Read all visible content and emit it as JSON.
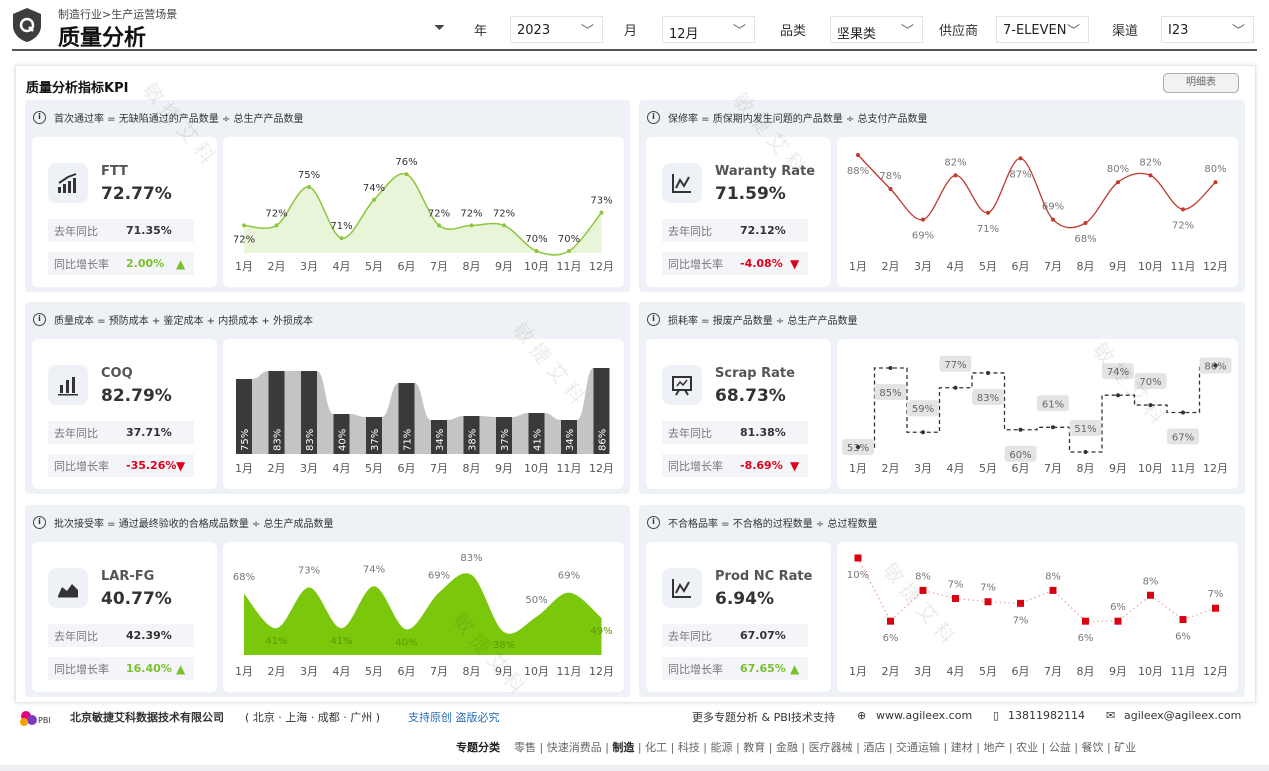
{
  "header": {
    "breadcrumb": "制造行业>生产运营场景",
    "title": "质量分析",
    "logo_letter": "Q",
    "filters": [
      {
        "label": "年",
        "value": "2023"
      },
      {
        "label": "月",
        "value": "12月"
      },
      {
        "label": "品类",
        "value": "坚果类"
      },
      {
        "label": "供应商",
        "value": "7-ELEVEN"
      },
      {
        "label": "渠道",
        "value": "I23"
      }
    ]
  },
  "main": {
    "title": "质量分析指标KPI",
    "detail_button": "明细表",
    "watermark": "敏捷艾科"
  },
  "panels": [
    {
      "formula": "首次通过率 = 无缺陷通过的产品数量 ÷ 总生产产品数量",
      "icon": "chart-up-icon",
      "name": "FTT",
      "value": "72.77%",
      "ly_label": "去年同比",
      "ly_value": "71.35%",
      "yoy_label": "同比增长率",
      "yoy_value": "2.00%",
      "trend": "up"
    },
    {
      "formula": "保修率 = 质保期内发生问题的产品数量 ÷ 总支付产品数量",
      "icon": "line-chart-icon",
      "name": "Waranty Rate",
      "value": "71.59%",
      "ly_label": "去年同比",
      "ly_value": "72.12%",
      "yoy_label": "同比增长率",
      "yoy_value": "-4.08%",
      "trend": "down"
    },
    {
      "formula": "质量成本 = 预防成本 + 鉴定成本 + 内损成本 + 外损成本",
      "icon": "bar-chart-icon",
      "name": "COQ",
      "value": "82.79%",
      "ly_label": "去年同比",
      "ly_value": "37.71%",
      "yoy_label": "同比增长率",
      "yoy_value": "-35.26%",
      "trend": "down"
    },
    {
      "formula": "损耗率 = 报废产品数量 ÷ 总生产产品数量",
      "icon": "presentation-icon",
      "name": "Scrap Rate",
      "value": "68.73%",
      "ly_label": "去年同比",
      "ly_value": "81.38%",
      "yoy_label": "同比增长率",
      "yoy_value": "-8.69%",
      "trend": "down"
    },
    {
      "formula": "批次接受率 = 通过最终验收的合格成品数量 ÷ 总生产成品数量",
      "icon": "area-chart-icon",
      "name": "LAR-FG",
      "value": "40.77%",
      "ly_label": "去年同比",
      "ly_value": "42.39%",
      "yoy_label": "同比增长率",
      "yoy_value": "16.40%",
      "trend": "up"
    },
    {
      "formula": "不合格品率 = 不合格的过程数量 ÷ 总过程数量",
      "icon": "line-chart-icon",
      "name": "Prod NC Rate",
      "value": "6.94%",
      "ly_label": "去年同比",
      "ly_value": "67.07%",
      "yoy_label": "同比增长率",
      "yoy_value": "67.65%",
      "trend": "up"
    }
  ],
  "colors": {
    "up": "#7cbf2e",
    "down": "#e0001b",
    "ftt_line": "#8dc63f",
    "ftt_fill": "#e8f5d8",
    "warranty_line": "#c0392b",
    "coq_bar": "#3a3a3a",
    "coq_area": "#c4c4c4",
    "lar_fill": "#7ac70c",
    "nc_marker": "#d9000f"
  },
  "chart_data": [
    {
      "type": "area",
      "categories": [
        "1月",
        "2月",
        "3月",
        "4月",
        "5月",
        "6月",
        "7月",
        "8月",
        "9月",
        "10月",
        "11月",
        "12月"
      ],
      "values": [
        72,
        72,
        75,
        71,
        74,
        76,
        72,
        72,
        72,
        70,
        70,
        73
      ],
      "labels": [
        "72%",
        "72%",
        "75%",
        "71%",
        "74%",
        "76%",
        "72%",
        "72%",
        "72%",
        "70%",
        "70%",
        "73%"
      ]
    },
    {
      "type": "line",
      "categories": [
        "1月",
        "2月",
        "3月",
        "4月",
        "5月",
        "6月",
        "7月",
        "8月",
        "9月",
        "10月",
        "11月",
        "12月"
      ],
      "values": [
        88,
        78,
        69,
        82,
        71,
        87,
        69,
        68,
        80,
        82,
        72,
        80
      ],
      "labels": [
        "88%",
        "78%",
        "69%",
        "82%",
        "71%",
        "87%",
        "69%",
        "68%",
        "80%",
        "82%",
        "72%",
        "80%"
      ]
    },
    {
      "type": "bar",
      "categories": [
        "1月",
        "2月",
        "3月",
        "4月",
        "5月",
        "6月",
        "7月",
        "8月",
        "9月",
        "10月",
        "11月",
        "12月"
      ],
      "values": [
        75,
        83,
        83,
        40,
        37,
        71,
        34,
        38,
        37,
        41,
        34,
        86
      ],
      "labels": [
        "75%",
        "83%",
        "83%",
        "40%",
        "37%",
        "71%",
        "34%",
        "38%",
        "37%",
        "41%",
        "34%",
        "86%"
      ]
    },
    {
      "type": "line",
      "style": "step-dashed",
      "categories": [
        "1月",
        "2月",
        "3月",
        "4月",
        "5月",
        "6月",
        "7月",
        "8月",
        "9月",
        "10月",
        "11月",
        "12月"
      ],
      "values": [
        53,
        85,
        59,
        77,
        83,
        60,
        61,
        51,
        74,
        70,
        67,
        86
      ],
      "labels": [
        "53%",
        "85%",
        "59%",
        "77%",
        "83%",
        "60%",
        "61%",
        "51%",
        "74%",
        "70%",
        "67%",
        "86%"
      ]
    },
    {
      "type": "area",
      "categories": [
        "1月",
        "2月",
        "3月",
        "4月",
        "5月",
        "6月",
        "7月",
        "8月",
        "9月",
        "10月",
        "11月",
        "12月"
      ],
      "values": [
        68,
        41,
        73,
        41,
        74,
        40,
        69,
        83,
        38,
        50,
        69,
        49
      ],
      "labels": [
        "68%",
        "41%",
        "73%",
        "41%",
        "74%",
        "40%",
        "69%",
        "83%",
        "38%",
        "50%",
        "69%",
        "49%"
      ]
    },
    {
      "type": "scatter",
      "style": "dotted-line",
      "categories": [
        "1月",
        "2月",
        "3月",
        "4月",
        "5月",
        "6月",
        "7月",
        "8月",
        "9月",
        "10月",
        "11月",
        "12月"
      ],
      "values": [
        10.0,
        6.1,
        8.0,
        7.5,
        7.3,
        7.2,
        8.0,
        6.1,
        6.1,
        7.7,
        6.2,
        6.9
      ],
      "labels": [
        "10%",
        "6%",
        "8%",
        "7%",
        "7%",
        "7%",
        "8%",
        "6%",
        "6%",
        "8%",
        "6%",
        "7%"
      ]
    }
  ],
  "footer": {
    "company": "北京敏捷艾科数据技术有限公司",
    "cities": "( 北京 · 上海 · 成都 · 广州 )",
    "copyright": "支持原创 盗版必究",
    "support": "更多专题分析 & PBI技术支持",
    "website": "www.agileex.com",
    "phone": "13811982114",
    "email": "agileex@agileex.com",
    "logo_text": "Power BI艾科",
    "topics_label": "专题分类",
    "topics": [
      "零售",
      "快速消费品",
      "制造",
      "化工",
      "科技",
      "能源",
      "教育",
      "金融",
      "医疗器械",
      "酒店",
      "交通运输",
      "建材",
      "地产",
      "农业",
      "公益",
      "餐饮",
      "矿业"
    ]
  }
}
